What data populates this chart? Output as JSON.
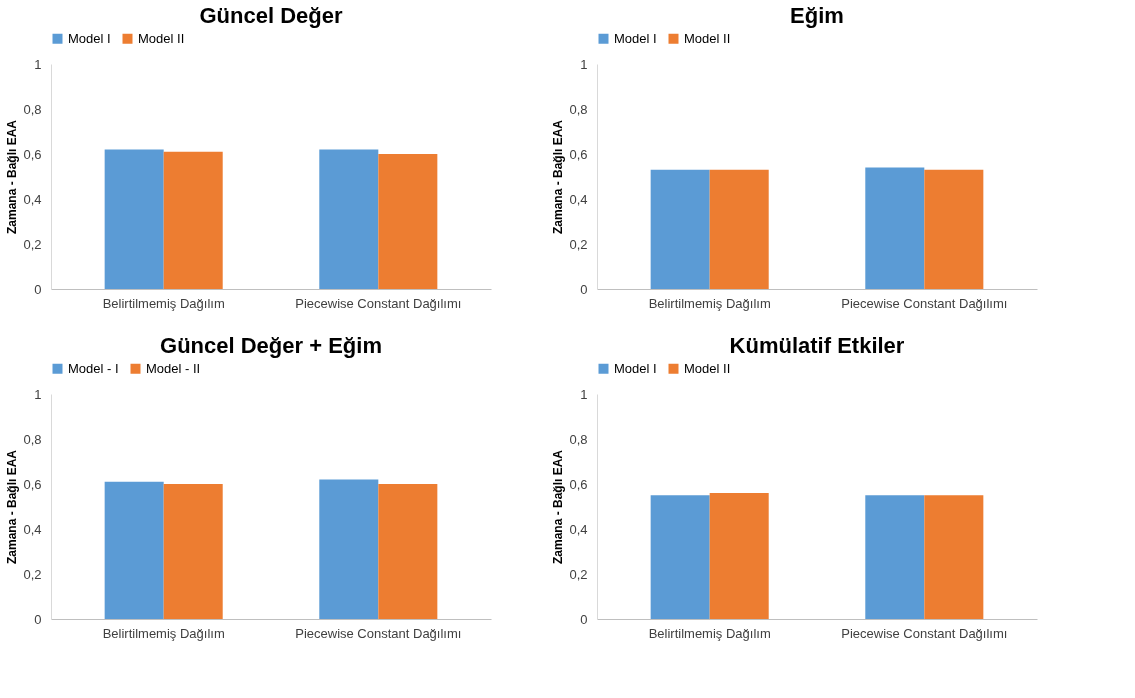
{
  "chart_data": [
    {
      "type": "bar",
      "title": "Güncel Değer",
      "ylabel": "Zamana - Bağlı EAA",
      "categories": [
        "Belirtilmemiş Dağılım",
        "Piecewise Constant Dağılımı"
      ],
      "legend": "top",
      "grid": false,
      "ylim": [
        0,
        1
      ],
      "yticks": [
        {
          "value": 0,
          "label": "0"
        },
        {
          "value": 0.2,
          "label": "0,2"
        },
        {
          "value": 0.4,
          "label": "0,4"
        },
        {
          "value": 0.6,
          "label": "0,6"
        },
        {
          "value": 0.8,
          "label": "0,8"
        },
        {
          "value": 1,
          "label": "1"
        }
      ],
      "series": [
        {
          "name": "Model I",
          "color": "#5b9bd5",
          "values": [
            0.62,
            0.62
          ]
        },
        {
          "name": "Model II",
          "color": "#ed7d31",
          "values": [
            0.61,
            0.6
          ]
        }
      ]
    },
    {
      "type": "bar",
      "title": "Eğim",
      "ylabel": "Zamana - Bağlı EAA",
      "categories": [
        "Belirtilmemiş Dağılım",
        "Piecewise Constant Dağılımı"
      ],
      "legend": "top",
      "grid": false,
      "ylim": [
        0,
        1
      ],
      "yticks": [
        {
          "value": 0,
          "label": "0"
        },
        {
          "value": 0.2,
          "label": "0,2"
        },
        {
          "value": 0.4,
          "label": "0,4"
        },
        {
          "value": 0.6,
          "label": "0,6"
        },
        {
          "value": 0.8,
          "label": "0,8"
        },
        {
          "value": 1,
          "label": "1"
        }
      ],
      "series": [
        {
          "name": "Model I",
          "color": "#5b9bd5",
          "values": [
            0.53,
            0.54
          ]
        },
        {
          "name": "Model II",
          "color": "#ed7d31",
          "values": [
            0.53,
            0.53
          ]
        }
      ]
    },
    {
      "type": "bar",
      "title": "Güncel Değer + Eğim",
      "ylabel": "Zamana - Bağlı EAA",
      "categories": [
        "Belirtilmemiş Dağılım",
        "Piecewise Constant Dağılımı"
      ],
      "legend": "top",
      "grid": false,
      "ylim": [
        0,
        1
      ],
      "yticks": [
        {
          "value": 0,
          "label": "0"
        },
        {
          "value": 0.2,
          "label": "0,2"
        },
        {
          "value": 0.4,
          "label": "0,4"
        },
        {
          "value": 0.6,
          "label": "0,6"
        },
        {
          "value": 0.8,
          "label": "0,8"
        },
        {
          "value": 1,
          "label": "1"
        }
      ],
      "series": [
        {
          "name": "Model - I",
          "color": "#5b9bd5",
          "values": [
            0.61,
            0.62
          ]
        },
        {
          "name": "Model - II",
          "color": "#ed7d31",
          "values": [
            0.6,
            0.6
          ]
        }
      ]
    },
    {
      "type": "bar",
      "title": "Kümülatif Etkiler",
      "ylabel": "Zamana - Bağlı EAA",
      "categories": [
        "Belirtilmemiş Dağılım",
        "Piecewise Constant Dağılımı"
      ],
      "legend": "top",
      "grid": false,
      "ylim": [
        0,
        1
      ],
      "yticks": [
        {
          "value": 0,
          "label": "0"
        },
        {
          "value": 0.2,
          "label": "0,2"
        },
        {
          "value": 0.4,
          "label": "0,4"
        },
        {
          "value": 0.6,
          "label": "0,6"
        },
        {
          "value": 0.8,
          "label": "0,8"
        },
        {
          "value": 1,
          "label": "1"
        }
      ],
      "series": [
        {
          "name": "Model I",
          "color": "#5b9bd5",
          "values": [
            0.55,
            0.55
          ]
        },
        {
          "name": "Model II",
          "color": "#ed7d31",
          "values": [
            0.56,
            0.55
          ]
        }
      ]
    }
  ]
}
